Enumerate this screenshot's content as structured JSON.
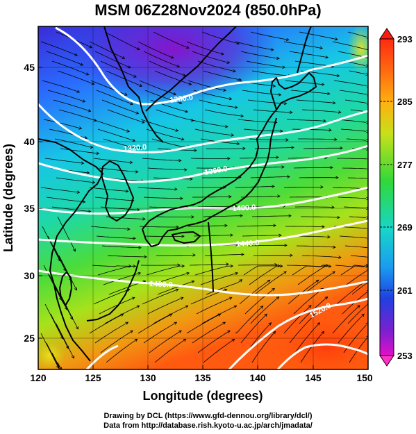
{
  "title": "MSM 06Z28Nov2024 (850.0hPa)",
  "xlabel": "Longitude (degrees)",
  "ylabel": "Latitude  (degrees)",
  "x_ticks": [
    "120",
    "125",
    "130",
    "135",
    "140",
    "145",
    "150"
  ],
  "y_ticks": [
    "25",
    "30",
    "35",
    "40",
    "45"
  ],
  "colorbar_ticks": [
    "293",
    "285",
    "277",
    "269",
    "261",
    "253"
  ],
  "contour_labels": [
    "1280.0",
    "1320.0",
    "1360.0",
    "1400.0",
    "1440.0",
    "1480.0",
    "1520.0"
  ],
  "credits": {
    "line1": "Drawing by DCL (https://www.gfd-dennou.org/library/dcl/)",
    "line2": "Data from http://database.rish.kyoto-u.ac.jp/arch/jmadata/"
  },
  "colors": {
    "contour": "#ffffff",
    "coast": "#000000",
    "streamline": "#000000"
  },
  "map_extent": {
    "lon": [
      120,
      150
    ],
    "lat": [
      22.4,
      47.6
    ]
  },
  "colorbar_range": [
    253,
    293
  ]
}
